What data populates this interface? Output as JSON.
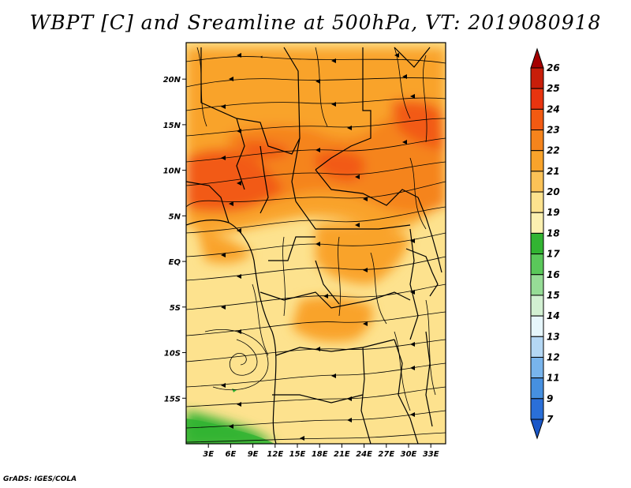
{
  "title": "WBPT [C] and Sreamline at 500hPa, VT: 2019080918",
  "footer": "GrADS: IGES/COLA",
  "map": {
    "lon_range": [
      0,
      35
    ],
    "lat_range": [
      -20,
      24
    ],
    "x_ticks": [
      {
        "lon": 3,
        "label": "3E"
      },
      {
        "lon": 6,
        "label": "6E"
      },
      {
        "lon": 9,
        "label": "9E"
      },
      {
        "lon": 12,
        "label": "12E"
      },
      {
        "lon": 15,
        "label": "15E"
      },
      {
        "lon": 18,
        "label": "18E"
      },
      {
        "lon": 21,
        "label": "21E"
      },
      {
        "lon": 24,
        "label": "24E"
      },
      {
        "lon": 27,
        "label": "27E"
      },
      {
        "lon": 30,
        "label": "30E"
      },
      {
        "lon": 33,
        "label": "33E"
      }
    ],
    "y_ticks": [
      {
        "lat": 20,
        "label": "20N"
      },
      {
        "lat": 15,
        "label": "15N"
      },
      {
        "lat": 10,
        "label": "10N"
      },
      {
        "lat": 5,
        "label": "5N"
      },
      {
        "lat": 0,
        "label": "EQ"
      },
      {
        "lat": -5,
        "label": "5S"
      },
      {
        "lat": -10,
        "label": "10S"
      },
      {
        "lat": -15,
        "label": "15S"
      }
    ]
  },
  "colorbar": {
    "labels": [
      "26",
      "25",
      "24",
      "23",
      "22",
      "21",
      "20",
      "19",
      "18",
      "17",
      "16",
      "15",
      "14",
      "13",
      "12",
      "11",
      "9",
      "7"
    ],
    "colors": [
      "#a50000",
      "#c81e0a",
      "#e8340f",
      "#f25a12",
      "#f5841c",
      "#f9a32b",
      "#fbc257",
      "#fde28e",
      "#fbf0b0",
      "#32b432",
      "#5ac85a",
      "#96dc96",
      "#d2f0d2",
      "#e6f6fb",
      "#b4d7f4",
      "#78b4ec",
      "#4690e0",
      "#2a6fd8",
      "#1a57c8"
    ]
  }
}
